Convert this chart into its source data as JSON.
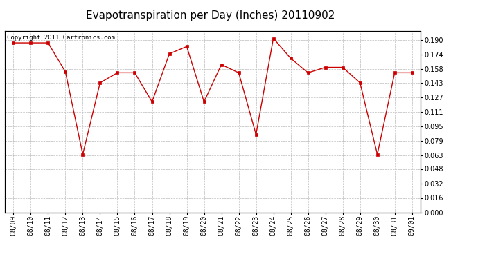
{
  "title": "Evapotranspiration per Day (Inches) 20110902",
  "copyright_text": "Copyright 2011 Cartronics.com",
  "x_labels": [
    "08/09",
    "08/10",
    "08/11",
    "08/12",
    "08/13",
    "08/14",
    "08/15",
    "08/16",
    "08/17",
    "08/18",
    "08/19",
    "08/20",
    "08/21",
    "08/22",
    "08/23",
    "08/24",
    "08/25",
    "08/26",
    "08/27",
    "08/28",
    "08/29",
    "08/30",
    "08/31",
    "09/01"
  ],
  "y_values": [
    0.187,
    0.187,
    0.187,
    0.155,
    0.064,
    0.143,
    0.154,
    0.154,
    0.122,
    0.175,
    0.183,
    0.122,
    0.163,
    0.154,
    0.086,
    0.192,
    0.17,
    0.154,
    0.16,
    0.16,
    0.143,
    0.064,
    0.154,
    0.154
  ],
  "line_color": "#cc0000",
  "marker": "s",
  "marker_size": 2.5,
  "background_color": "#ffffff",
  "grid_color": "#bbbbbb",
  "ylim": [
    0.0,
    0.2
  ],
  "yticks": [
    0.0,
    0.016,
    0.032,
    0.048,
    0.063,
    0.079,
    0.095,
    0.111,
    0.127,
    0.143,
    0.158,
    0.174,
    0.19
  ],
  "title_fontsize": 11,
  "tick_fontsize": 7,
  "copyright_fontsize": 6.5
}
